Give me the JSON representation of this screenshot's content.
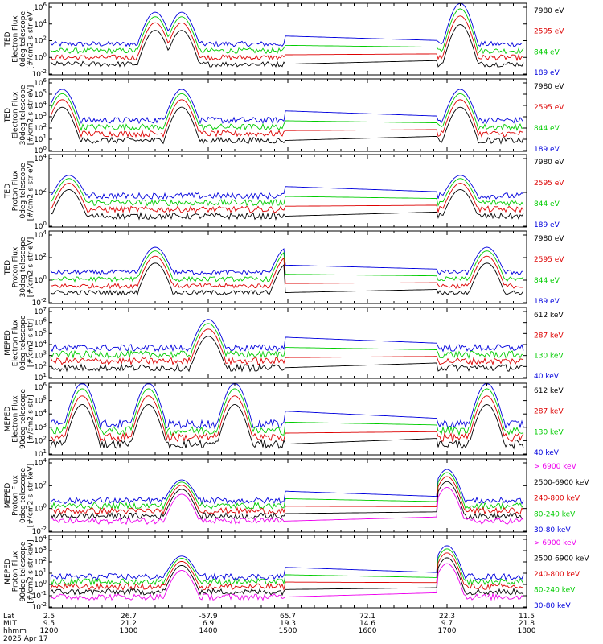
{
  "chart_data": {
    "type": "line",
    "title": "",
    "x_axis": {
      "rows": [
        {
          "label": "Lat",
          "ticks": [
            "2.5",
            "26.7",
            "-57.9",
            "65.7",
            "72.1",
            "22.3",
            "11.5"
          ]
        },
        {
          "label": "MLT",
          "ticks": [
            "9.5",
            "21.2",
            "6.9",
            "19.3",
            "14.6",
            "9.7",
            "21.8"
          ]
        },
        {
          "label": "hhmm",
          "ticks": [
            "1200",
            "1300",
            "1400",
            "1500",
            "1600",
            "1700",
            "1800"
          ]
        }
      ],
      "date": "2025 Apr 17",
      "range": [
        "1200",
        "1800"
      ]
    },
    "panels": [
      {
        "ylabel": [
          "TED",
          "Electron Flux",
          "0deg telescope",
          "[#/cm2-s-str-eV]"
        ],
        "yscale": "log",
        "ylim": [
          0.01,
          1000000
        ],
        "ticks": [
          "10^6",
          "10^4",
          "10^2",
          "10^0",
          "10^-2"
        ],
        "channels": [
          {
            "label": "7980 eV",
            "color": "#000000"
          },
          {
            "label": "2595 eV",
            "color": "#dd0000"
          },
          {
            "label": "844 eV",
            "color": "#00cc00"
          },
          {
            "label": "189 eV",
            "color": "#0000dd"
          }
        ],
        "peaks": [
          [
            "1320",
            100000
          ],
          [
            "1340",
            100000
          ],
          [
            "1710",
            1000000
          ]
        ]
      },
      {
        "ylabel": [
          "TED",
          "Electron Flux",
          "30deg telescope",
          "[#/cm2-s-str-eV]"
        ],
        "yscale": "log",
        "ylim": [
          0.1,
          1000000
        ],
        "ticks": [
          "10^6",
          "10^5",
          "10^4",
          "10^3",
          "10^2",
          "10^1",
          "10^0"
        ],
        "channels": [
          {
            "label": "7980 eV",
            "color": "#000000"
          },
          {
            "label": "2595 eV",
            "color": "#dd0000"
          },
          {
            "label": "844 eV",
            "color": "#00cc00"
          },
          {
            "label": "189 eV",
            "color": "#0000dd"
          }
        ],
        "peaks": [
          [
            "1210",
            100000
          ],
          [
            "1340",
            100000
          ],
          [
            "1710",
            100000
          ]
        ]
      },
      {
        "ylabel": [
          "TED",
          "Proton Flux",
          "0deg telescope",
          "[#/cm2-s-str-eV]"
        ],
        "yscale": "log",
        "ylim": [
          0.1,
          1000000
        ],
        "ticks": [
          "10^4",
          "10^2",
          "10^0"
        ],
        "channels": [
          {
            "label": "7980 eV",
            "color": "#000000"
          },
          {
            "label": "2595 eV",
            "color": "#dd0000"
          },
          {
            "label": "844 eV",
            "color": "#00cc00"
          },
          {
            "label": "189 eV",
            "color": "#0000dd"
          }
        ],
        "peaks": [
          [
            "1215",
            10000
          ],
          [
            "1710",
            10000
          ]
        ]
      },
      {
        "ylabel": [
          "TED",
          "Proton Flux",
          "30deg telescope",
          "[#/cm2-s-str-eV]"
        ],
        "yscale": "log",
        "ylim": [
          0.001,
          1000000
        ],
        "ticks": [
          "10^4",
          "10^2",
          "10^0",
          "10^-2"
        ],
        "channels": [
          {
            "label": "7980 eV",
            "color": "#000000"
          },
          {
            "label": "2595 eV",
            "color": "#dd0000"
          },
          {
            "label": "844 eV",
            "color": "#00cc00"
          },
          {
            "label": "189 eV",
            "color": "#0000dd"
          }
        ],
        "peaks": [
          [
            "1320",
            10000
          ],
          [
            "1500",
            10000
          ],
          [
            "1730",
            10000
          ]
        ]
      },
      {
        "ylabel": [
          "MEPED",
          "Electron Flux",
          "0deg telescope",
          "[#/cm2-s-str]"
        ],
        "yscale": "log",
        "ylim": [
          10,
          10000000
        ],
        "ticks": [
          "10^7",
          "10^6",
          "10^5",
          "10^4",
          "10^3",
          "10^2",
          "10^1"
        ],
        "channels": [
          {
            "label": "612 keV",
            "color": "#000000"
          },
          {
            "label": "287 keV",
            "color": "#dd0000"
          },
          {
            "label": "130 keV",
            "color": "#00cc00"
          },
          {
            "label": "40 keV",
            "color": "#0000dd"
          }
        ],
        "peaks": [
          [
            "1400",
            1000000
          ]
        ]
      },
      {
        "ylabel": [
          "MEPED",
          "Electron Flux",
          "90deg telescope",
          "[#/cm2-s-str]"
        ],
        "yscale": "log",
        "ylim": [
          10,
          1000000
        ],
        "ticks": [
          "10^6",
          "10^5",
          "10^4",
          "10^3",
          "10^2",
          "10^1"
        ],
        "channels": [
          {
            "label": "612 keV",
            "color": "#000000"
          },
          {
            "label": "287 keV",
            "color": "#dd0000"
          },
          {
            "label": "130 keV",
            "color": "#00cc00"
          },
          {
            "label": "40 keV",
            "color": "#0000dd"
          }
        ],
        "peaks": [
          [
            "1225",
            1000000
          ],
          [
            "1315",
            1000000
          ],
          [
            "1420",
            1000000
          ],
          [
            "1730",
            1000000
          ]
        ]
      },
      {
        "ylabel": [
          "MEPED",
          "Proton Flux",
          "0deg telescope",
          "[#/cm2-s-str-keV]"
        ],
        "yscale": "log",
        "ylim": [
          0.01,
          100000
        ],
        "ticks": [
          "10^4",
          "10^2",
          "10^0",
          "10^-2"
        ],
        "channels": [
          {
            "label": "> 6900 keV",
            "color": "#ee00ee"
          },
          {
            "label": "2500-6900 keV",
            "color": "#000000"
          },
          {
            "label": "240-800 keV",
            "color": "#dd0000"
          },
          {
            "label": "80-240 keV",
            "color": "#00cc00"
          },
          {
            "label": "30-80 keV",
            "color": "#0000dd"
          }
        ],
        "peaks": [
          [
            "1340",
            1000
          ],
          [
            "1700",
            10000
          ]
        ]
      },
      {
        "ylabel": [
          "MEPED",
          "Proton Flux",
          "90deg telescope",
          "[#/cm2-s-str-keV]"
        ],
        "yscale": "log",
        "ylim": [
          0.01,
          100000
        ],
        "ticks": [
          "10^4",
          "10^3",
          "10^2",
          "10^1",
          "10^0",
          "10^-1",
          "10^-2"
        ],
        "channels": [
          {
            "label": "> 6900 keV",
            "color": "#ee00ee"
          },
          {
            "label": "2500-6900 keV",
            "color": "#000000"
          },
          {
            "label": "240-800 keV",
            "color": "#dd0000"
          },
          {
            "label": "80-240 keV",
            "color": "#00cc00"
          },
          {
            "label": "30-80 keV",
            "color": "#0000dd"
          }
        ],
        "peaks": [
          [
            "1340",
            1000
          ],
          [
            "1700",
            10000
          ]
        ]
      }
    ]
  }
}
